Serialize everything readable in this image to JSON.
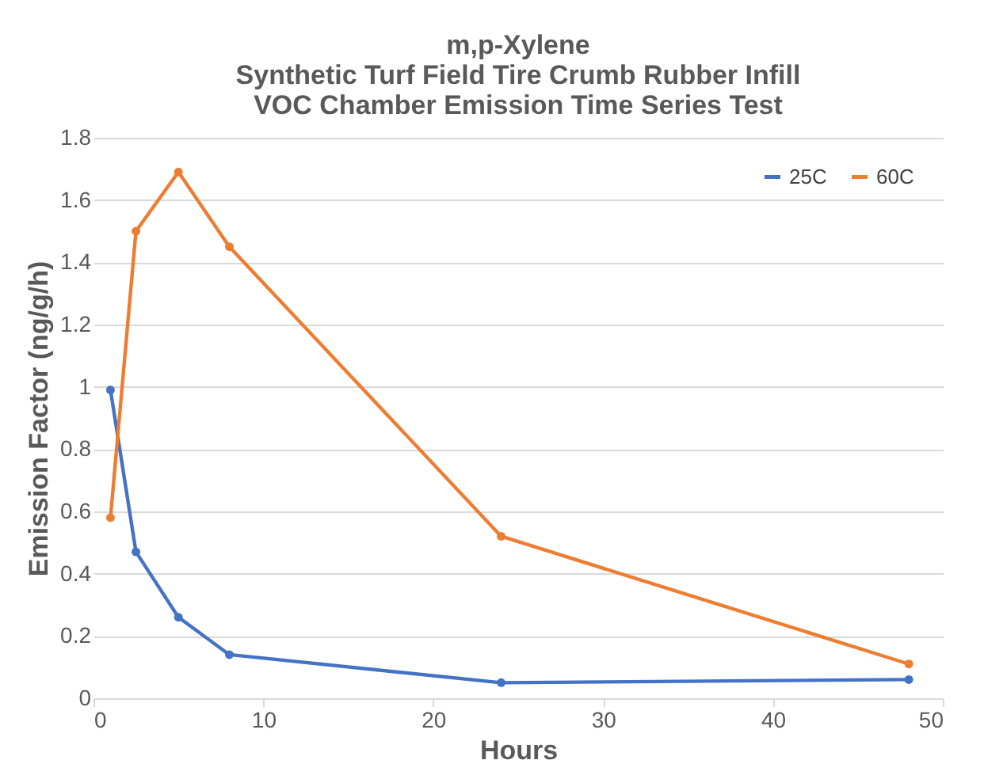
{
  "chart_data": {
    "type": "line",
    "title": [
      "m,p-Xylene",
      "Synthetic Turf Field Tire Crumb Rubber Infill",
      "VOC Chamber Emission Time Series Test"
    ],
    "xlabel": "Hours",
    "ylabel": "Emission Factor  (ng/g/h)",
    "x": [
      1,
      2.5,
      5,
      8,
      24,
      48
    ],
    "series": [
      {
        "name": "25C",
        "color": "#4472c4",
        "values": [
          0.99,
          0.47,
          0.26,
          0.14,
          0.05,
          0.06
        ]
      },
      {
        "name": "60C",
        "color": "#ed7d31",
        "values": [
          0.58,
          1.5,
          1.69,
          1.45,
          0.52,
          0.11
        ]
      }
    ],
    "xlim": [
      0,
      50
    ],
    "xticks": [
      0,
      10,
      20,
      30,
      40,
      50
    ],
    "ylim": [
      0,
      1.8
    ],
    "yticks": [
      0,
      0.2,
      0.4,
      0.6,
      0.8,
      1,
      1.2,
      1.4,
      1.6,
      1.8
    ],
    "grid": "y",
    "legend": "top right",
    "marker": "circle",
    "line_style": "solid"
  }
}
